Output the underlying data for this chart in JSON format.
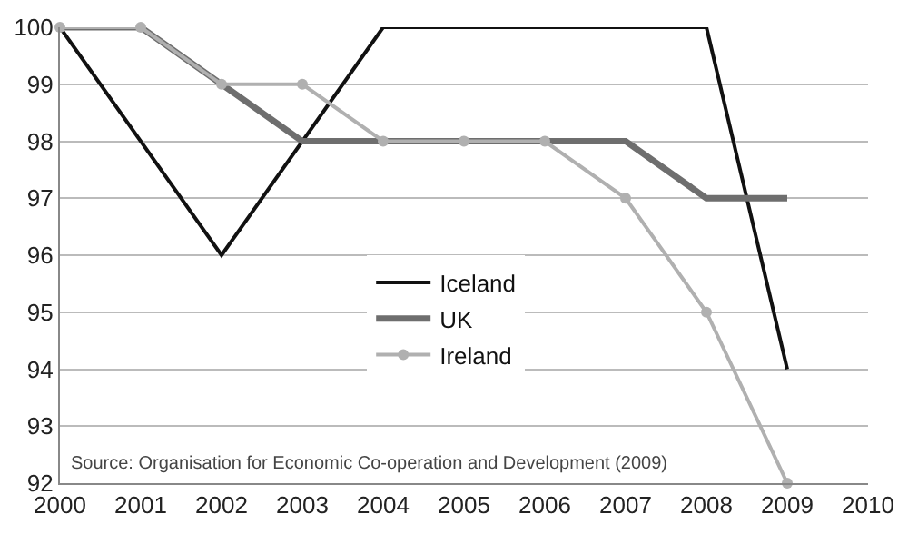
{
  "chart_data": {
    "type": "line",
    "series": [
      {
        "name": "Iceland",
        "color": "#111111",
        "x": [
          2000,
          2002,
          2004,
          2008,
          2009
        ],
        "values": [
          100,
          96,
          100,
          100,
          94
        ],
        "marker": "none"
      },
      {
        "name": "UK",
        "color": "#6e6e6e",
        "x": [
          2000,
          2001,
          2002,
          2003,
          2004,
          2005,
          2006,
          2007,
          2008,
          2009
        ],
        "values": [
          100,
          100,
          99,
          98,
          98,
          98,
          98,
          98,
          97,
          97
        ],
        "marker": "none"
      },
      {
        "name": "Ireland",
        "color": "#b0b0b0",
        "x": [
          2000,
          2001,
          2002,
          2003,
          2004,
          2005,
          2006,
          2007,
          2008,
          2009
        ],
        "values": [
          100,
          100,
          99,
          99,
          98,
          98,
          98,
          97,
          95,
          92
        ],
        "marker": "circle"
      }
    ],
    "xlim": [
      2000,
      2010
    ],
    "xticks": [
      2000,
      2001,
      2002,
      2003,
      2004,
      2005,
      2006,
      2007,
      2008,
      2009,
      2010
    ],
    "ylim": [
      92,
      100
    ],
    "yticks": [
      92,
      93,
      94,
      95,
      96,
      97,
      98,
      99,
      100
    ],
    "grid": "y",
    "legend": "center",
    "annotations": [
      "Source: Organisation for Economic Co-operation and Development (2009)"
    ]
  }
}
